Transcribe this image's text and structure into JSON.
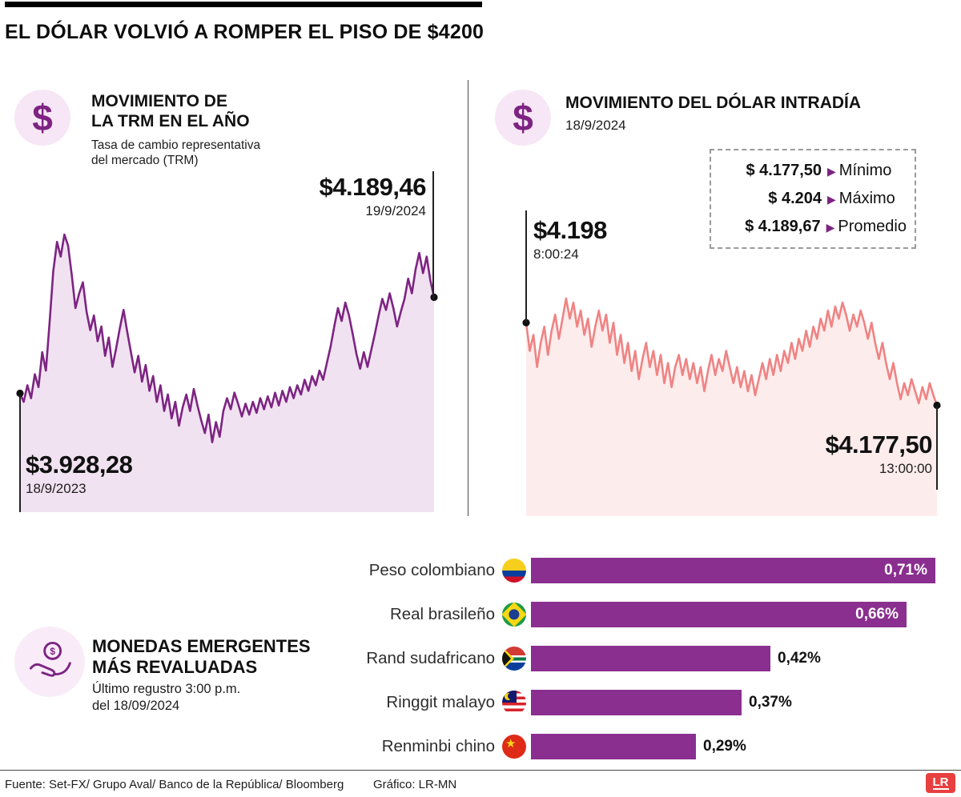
{
  "title": "EL DÓLAR VOLVIÓ A ROMPER EL PISO DE $4200",
  "icons": {
    "dollar": "$",
    "triangle": "▶"
  },
  "colors": {
    "accent_purple": "#7d2483",
    "bar_purple": "#8a2f8f",
    "trm_line": "#7d2483",
    "trm_fill": "#f1e2f1",
    "intraday_line": "#ef8383",
    "intraday_fill": "#fdecec",
    "dot_black": "#111111",
    "logo_red": "#e8403f"
  },
  "panels": {
    "trm": {
      "heading_line1": "MOVIMIENTO DE",
      "heading_line2": "LA TRM EN EL AÑO",
      "sub_line1": "Tasa de cambio representativa",
      "sub_line2": "del mercado (TRM)",
      "end_value": "$4.189,46",
      "end_date": "19/9/2024",
      "start_value": "$3.928,28",
      "start_date": "18/9/2023"
    },
    "intraday": {
      "heading": "MOVIMIENTO DEL DÓLAR INTRADÍA",
      "sub": "18/9/2024",
      "start_value": "$4.198",
      "start_time": "8:00:24",
      "end_value": "$4.177,50",
      "end_time": "13:00:00",
      "stats": [
        {
          "value": "$ 4.177,50",
          "label": "Mínimo"
        },
        {
          "value": "$ 4.204",
          "label": "Máximo"
        },
        {
          "value": "$ 4.189,67",
          "label": "Promedio"
        }
      ]
    },
    "emerging": {
      "heading_line1": "MONEDAS EMERGENTES",
      "heading_line2": "MÁS REVALUADAS",
      "sub_line1": "Último regustro 3:00 p.m.",
      "sub_line2": "del 18/09/2024"
    }
  },
  "footer": {
    "source": "Fuente: Set-FX/ Grupo Aval/ Banco de la República/ Bloomberg",
    "credit": "Gráfico: LR-MN",
    "logo": "LR"
  },
  "chart_data": [
    {
      "type": "area",
      "title": "Movimiento de la TRM en el año",
      "x_start": "18/9/2023",
      "x_end": "19/9/2024",
      "start": 3928.28,
      "end": 4189.46,
      "ylim": [
        3605,
        4382
      ],
      "values": [
        3928.28,
        3905,
        3950,
        3915,
        3980,
        3945,
        4040,
        3990,
        4120,
        4260,
        4340,
        4300,
        4360,
        4330,
        4250,
        4160,
        4200,
        4230,
        4150,
        4100,
        4140,
        4070,
        4110,
        4030,
        4080,
        4000,
        4050,
        4105,
        4155,
        4095,
        4040,
        3985,
        4030,
        3960,
        4005,
        3935,
        3975,
        3905,
        3950,
        3880,
        3925,
        3860,
        3905,
        3840,
        3890,
        3925,
        3880,
        3940,
        3895,
        3855,
        3820,
        3870,
        3795,
        3850,
        3810,
        3880,
        3915,
        3885,
        3930,
        3900,
        3865,
        3900,
        3870,
        3905,
        3875,
        3915,
        3885,
        3920,
        3890,
        3930,
        3895,
        3935,
        3905,
        3945,
        3915,
        3950,
        3925,
        3965,
        3935,
        3975,
        3950,
        3990,
        3965,
        4010,
        4055,
        4110,
        4160,
        4125,
        4175,
        4140,
        4090,
        4035,
        3995,
        4040,
        4000,
        4045,
        4090,
        4140,
        4185,
        4155,
        4200,
        4160,
        4110,
        4150,
        4185,
        4240,
        4200,
        4265,
        4310,
        4255,
        4300,
        4235,
        4189.46
      ]
    },
    {
      "type": "area",
      "title": "Movimiento del dólar intradía 18/9/2024",
      "x_start": "8:00:24",
      "x_end": "13:00:00",
      "start": 4198,
      "end": 4177.5,
      "min": 4177.5,
      "max": 4204,
      "avg": 4189.67,
      "ylim": [
        4150,
        4205
      ],
      "values": [
        4198,
        4191,
        4195,
        4187,
        4193,
        4197,
        4190,
        4196,
        4200,
        4194,
        4199,
        4204,
        4199,
        4203,
        4197,
        4201,
        4195,
        4199,
        4192,
        4197,
        4201,
        4196,
        4200,
        4193,
        4198,
        4190,
        4195,
        4188,
        4193,
        4186,
        4191,
        4184,
        4189,
        4193,
        4187,
        4191,
        4185,
        4190,
        4183,
        4188,
        4182,
        4187,
        4190,
        4185,
        4189,
        4184,
        4188,
        4183,
        4187,
        4181,
        4186,
        4190,
        4185,
        4189,
        4186,
        4191,
        4187,
        4183,
        4187,
        4182,
        4186,
        4181,
        4185,
        4180,
        4184,
        4188,
        4184,
        4189,
        4185,
        4190,
        4186,
        4191,
        4188,
        4193,
        4189,
        4194,
        4191,
        4196,
        4192,
        4197,
        4194,
        4199,
        4196,
        4201,
        4197,
        4202,
        4199,
        4203,
        4200,
        4196,
        4200,
        4197,
        4201,
        4198,
        4194,
        4198,
        4193,
        4189,
        4193,
        4188,
        4184,
        4188,
        4183,
        4179,
        4183,
        4180,
        4184,
        4181,
        4178,
        4182,
        4179,
        4183,
        4180,
        4177.5
      ]
    },
    {
      "type": "bar",
      "title": "Monedas emergentes más revaluadas (%)",
      "categories": [
        "Peso colombiano",
        "Real brasileño",
        "Rand sudafricano",
        "Ringgit malayo",
        "Renminbi chino"
      ],
      "values": [
        0.71,
        0.66,
        0.42,
        0.37,
        0.29
      ],
      "labels": [
        "0,71%",
        "0,66%",
        "0,42%",
        "0,37%",
        "0,29%"
      ],
      "flags": [
        "colombia",
        "brazil",
        "southafrica",
        "malaysia",
        "china"
      ],
      "xlim": [
        0,
        0.75
      ]
    }
  ]
}
